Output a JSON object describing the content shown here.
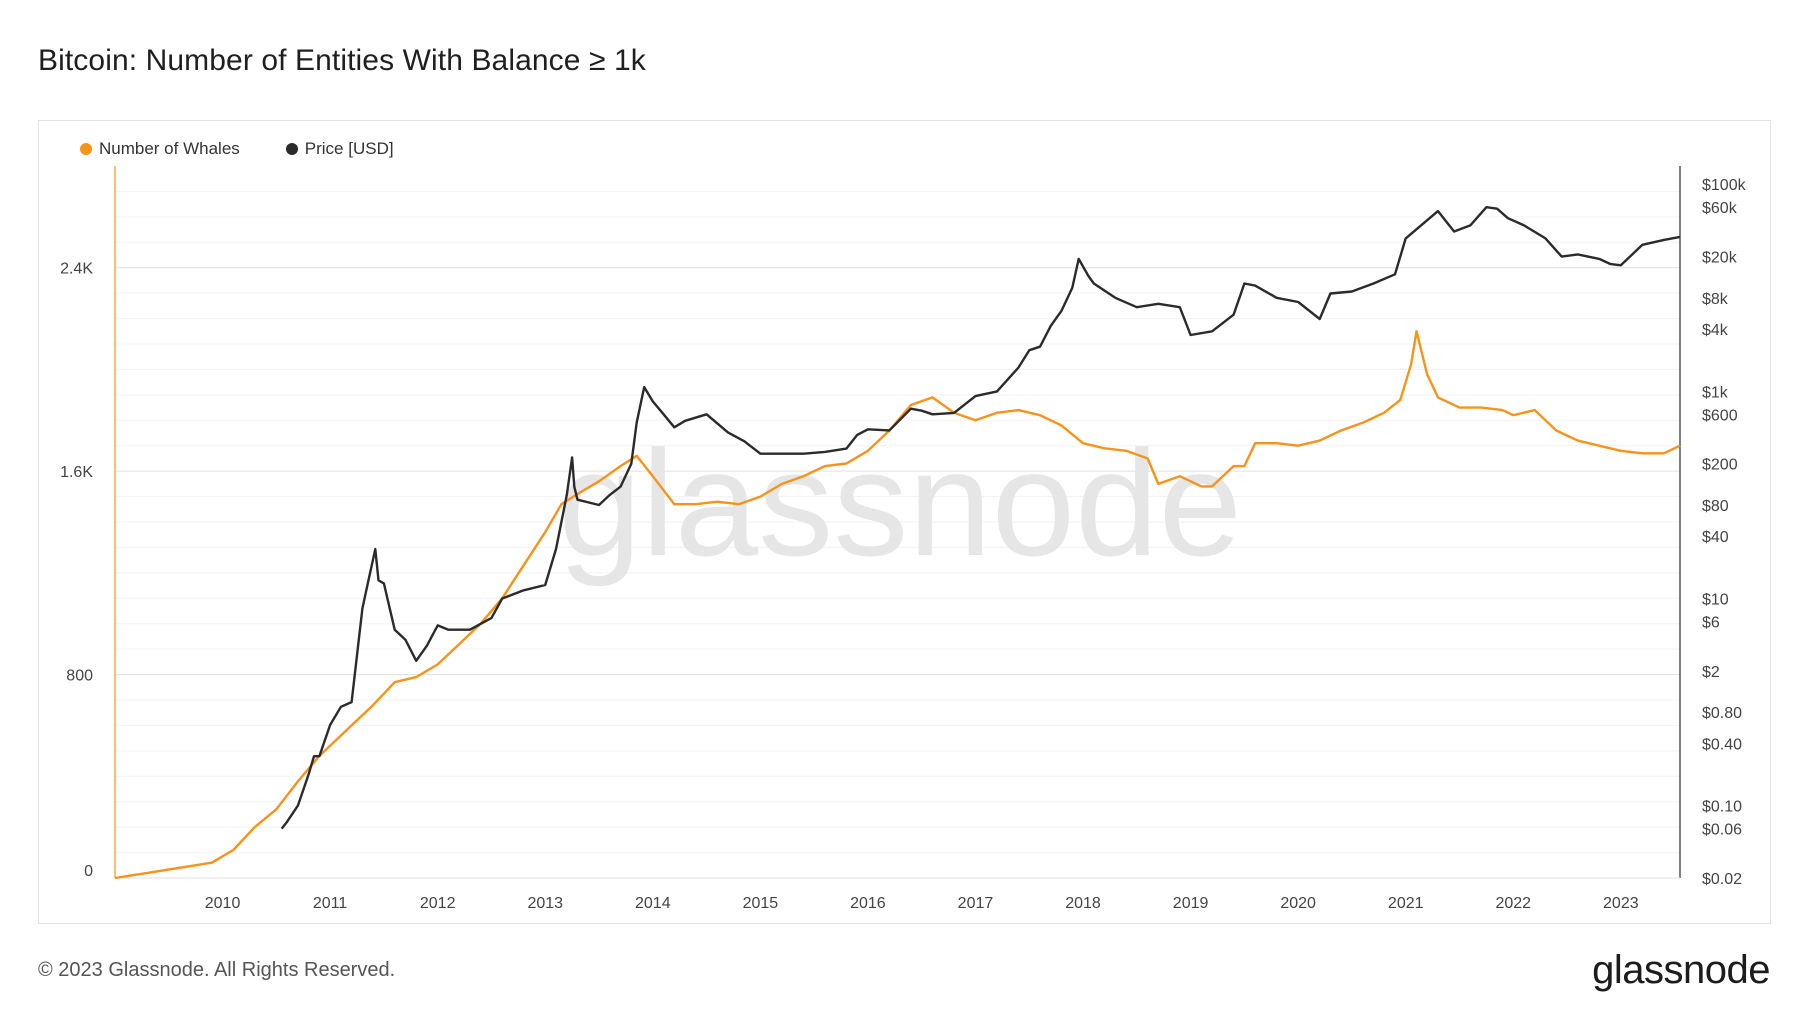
{
  "header": {
    "title": "Bitcoin: Number of Entities With Balance ≥ 1k"
  },
  "footer": {
    "copyright": "© 2023 Glassnode. All Rights Reserved.",
    "brand": "glassnode"
  },
  "watermark": "glassnode",
  "colors": {
    "whales": "#F7931A",
    "price": "#2b2b2b",
    "grid": "#ececec",
    "axis_text": "#444444"
  },
  "chart_data": {
    "type": "line",
    "title": "Bitcoin: Number of Entities With Balance ≥ 1k",
    "x_ticks": [
      "2010",
      "2011",
      "2012",
      "2013",
      "2014",
      "2015",
      "2016",
      "2017",
      "2018",
      "2019",
      "2020",
      "2021",
      "2022",
      "2023"
    ],
    "x_range": [
      2009.0,
      2023.55
    ],
    "y_left": {
      "ticks": [
        0,
        800,
        1600,
        2400
      ],
      "tick_labels": [
        "0",
        "800",
        "1.6K",
        "2.4K"
      ],
      "range": [
        0,
        2800
      ]
    },
    "y_right": {
      "scale": "log",
      "ticks": [
        0.02,
        0.06,
        0.1,
        0.4,
        0.8,
        2,
        6,
        10,
        40,
        80,
        200,
        600,
        1000,
        4000,
        8000,
        20000,
        60000,
        100000
      ],
      "tick_labels": [
        "$0.02",
        "$0.06",
        "$0.10",
        "$0.40",
        "$0.80",
        "$2",
        "$6",
        "$10",
        "$40",
        "$80",
        "$200",
        "$600",
        "$1k",
        "$4k",
        "$8k",
        "$20k",
        "$60k",
        "$100k"
      ],
      "range": [
        0.02,
        150000
      ]
    },
    "grid": true,
    "legend_position": "top-left",
    "series": [
      {
        "name": "Number of Whales",
        "axis": "left",
        "x": [
          2009.0,
          2009.3,
          2009.6,
          2009.9,
          2010.1,
          2010.3,
          2010.5,
          2010.7,
          2010.9,
          2011.0,
          2011.2,
          2011.4,
          2011.6,
          2011.8,
          2012.0,
          2012.2,
          2012.4,
          2012.6,
          2012.8,
          2013.0,
          2013.15,
          2013.3,
          2013.5,
          2013.7,
          2013.85,
          2014.0,
          2014.2,
          2014.4,
          2014.6,
          2014.8,
          2015.0,
          2015.2,
          2015.4,
          2015.6,
          2015.8,
          2016.0,
          2016.2,
          2016.4,
          2016.6,
          2016.8,
          2017.0,
          2017.2,
          2017.4,
          2017.6,
          2017.8,
          2018.0,
          2018.2,
          2018.4,
          2018.6,
          2018.7,
          2018.9,
          2019.1,
          2019.2,
          2019.4,
          2019.5,
          2019.6,
          2019.8,
          2020.0,
          2020.2,
          2020.4,
          2020.6,
          2020.8,
          2020.95,
          2021.05,
          2021.1,
          2021.2,
          2021.3,
          2021.5,
          2021.7,
          2021.9,
          2022.0,
          2022.2,
          2022.4,
          2022.6,
          2022.8,
          2023.0,
          2023.2,
          2023.4,
          2023.55
        ],
        "values": [
          0,
          20,
          40,
          60,
          110,
          200,
          270,
          380,
          480,
          520,
          600,
          680,
          770,
          790,
          840,
          920,
          1000,
          1100,
          1230,
          1360,
          1470,
          1510,
          1560,
          1620,
          1660,
          1580,
          1470,
          1470,
          1480,
          1470,
          1500,
          1550,
          1580,
          1620,
          1630,
          1680,
          1760,
          1860,
          1890,
          1830,
          1800,
          1830,
          1840,
          1820,
          1780,
          1710,
          1690,
          1680,
          1650,
          1550,
          1580,
          1540,
          1540,
          1620,
          1620,
          1710,
          1710,
          1700,
          1720,
          1760,
          1790,
          1830,
          1880,
          2020,
          2150,
          1980,
          1890,
          1850,
          1850,
          1840,
          1820,
          1840,
          1760,
          1720,
          1700,
          1680,
          1670,
          1670,
          1700
        ]
      },
      {
        "name": "Price [USD]",
        "axis": "right",
        "x": [
          2010.55,
          2010.6,
          2010.7,
          2010.8,
          2010.85,
          2010.9,
          2011.0,
          2011.1,
          2011.2,
          2011.3,
          2011.35,
          2011.42,
          2011.45,
          2011.5,
          2011.6,
          2011.7,
          2011.8,
          2011.9,
          2012.0,
          2012.1,
          2012.3,
          2012.5,
          2012.6,
          2012.8,
          2013.0,
          2013.1,
          2013.2,
          2013.25,
          2013.27,
          2013.3,
          2013.5,
          2013.6,
          2013.7,
          2013.8,
          2013.85,
          2013.92,
          2014.0,
          2014.1,
          2014.2,
          2014.3,
          2014.5,
          2014.7,
          2014.85,
          2015.0,
          2015.2,
          2015.4,
          2015.6,
          2015.8,
          2015.9,
          2016.0,
          2016.2,
          2016.4,
          2016.5,
          2016.6,
          2016.8,
          2017.0,
          2017.2,
          2017.4,
          2017.5,
          2017.6,
          2017.7,
          2017.8,
          2017.9,
          2017.96,
          2018.05,
          2018.1,
          2018.3,
          2018.5,
          2018.7,
          2018.9,
          2019.0,
          2019.2,
          2019.4,
          2019.5,
          2019.6,
          2019.8,
          2020.0,
          2020.2,
          2020.3,
          2020.5,
          2020.7,
          2020.9,
          2021.0,
          2021.2,
          2021.3,
          2021.45,
          2021.6,
          2021.75,
          2021.85,
          2021.95,
          2022.1,
          2022.3,
          2022.45,
          2022.6,
          2022.8,
          2022.9,
          2023.0,
          2023.2,
          2023.4,
          2023.55
        ],
        "values": [
          0.06,
          0.07,
          0.1,
          0.2,
          0.3,
          0.3,
          0.6,
          0.9,
          1.0,
          8,
          14,
          30,
          15,
          14,
          5,
          4,
          2.5,
          3.5,
          5.5,
          5,
          5,
          6.5,
          10,
          12,
          13.5,
          30,
          100,
          230,
          120,
          90,
          80,
          100,
          120,
          200,
          500,
          1100,
          800,
          600,
          450,
          520,
          600,
          400,
          330,
          250,
          250,
          250,
          260,
          280,
          380,
          430,
          420,
          680,
          650,
          600,
          620,
          900,
          1000,
          1700,
          2500,
          2700,
          4300,
          6000,
          10000,
          19000,
          13000,
          11000,
          8000,
          6500,
          7000,
          6500,
          3500,
          3800,
          5500,
          11000,
          10500,
          8000,
          7300,
          5000,
          8800,
          9200,
          11000,
          13500,
          30000,
          45000,
          55000,
          35000,
          40000,
          60000,
          58000,
          47000,
          40000,
          30000,
          20000,
          21000,
          19000,
          17000,
          16500,
          26000,
          29000,
          31000
        ]
      }
    ]
  }
}
